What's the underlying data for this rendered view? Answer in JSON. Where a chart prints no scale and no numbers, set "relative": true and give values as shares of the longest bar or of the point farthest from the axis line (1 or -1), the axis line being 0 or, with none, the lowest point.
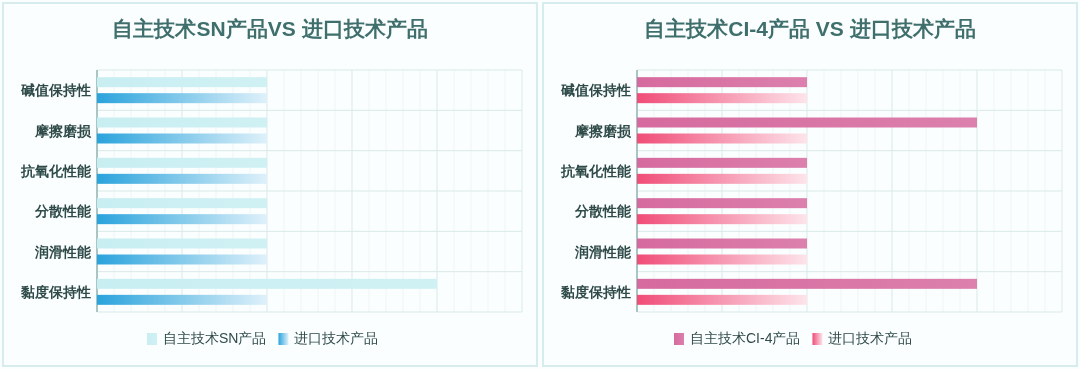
{
  "chart_data": [
    {
      "type": "bar",
      "orientation": "horizontal",
      "relative": true,
      "title": "自主技术SN产品VS 进口技术产品",
      "categories": [
        "碱值保持性",
        "摩擦磨损",
        "抗氧化性能",
        "分散性能",
        "润滑性能",
        "黏度保持性"
      ],
      "grid": true,
      "legend": "bottom",
      "series": [
        {
          "name": "自主技术SN产品",
          "color": "#c8eef2",
          "values": [
            0.5,
            0.5,
            0.5,
            0.5,
            0.5,
            1
          ]
        },
        {
          "name": "进口技术产品",
          "color": "#2aa3dc",
          "values": [
            0.5,
            0.5,
            0.5,
            0.5,
            0.5,
            0.5
          ]
        }
      ]
    },
    {
      "type": "bar",
      "orientation": "horizontal",
      "relative": true,
      "title": "自主技术CI-4产品 VS 进口技术产品",
      "categories": [
        "碱值保持性",
        "摩擦磨损",
        "抗氧化性能",
        "分散性能",
        "润滑性能",
        "黏度保持性"
      ],
      "grid": true,
      "legend": "bottom",
      "series": [
        {
          "name": "自主技术CI-4产品",
          "color": "#d66a9e",
          "values": [
            0.5,
            1,
            0.5,
            0.5,
            0.5,
            1
          ]
        },
        {
          "name": "进口技术产品",
          "color": "#f04d78",
          "values": [
            0.5,
            0.5,
            0.5,
            0.5,
            0.5,
            0.5
          ]
        }
      ]
    }
  ]
}
